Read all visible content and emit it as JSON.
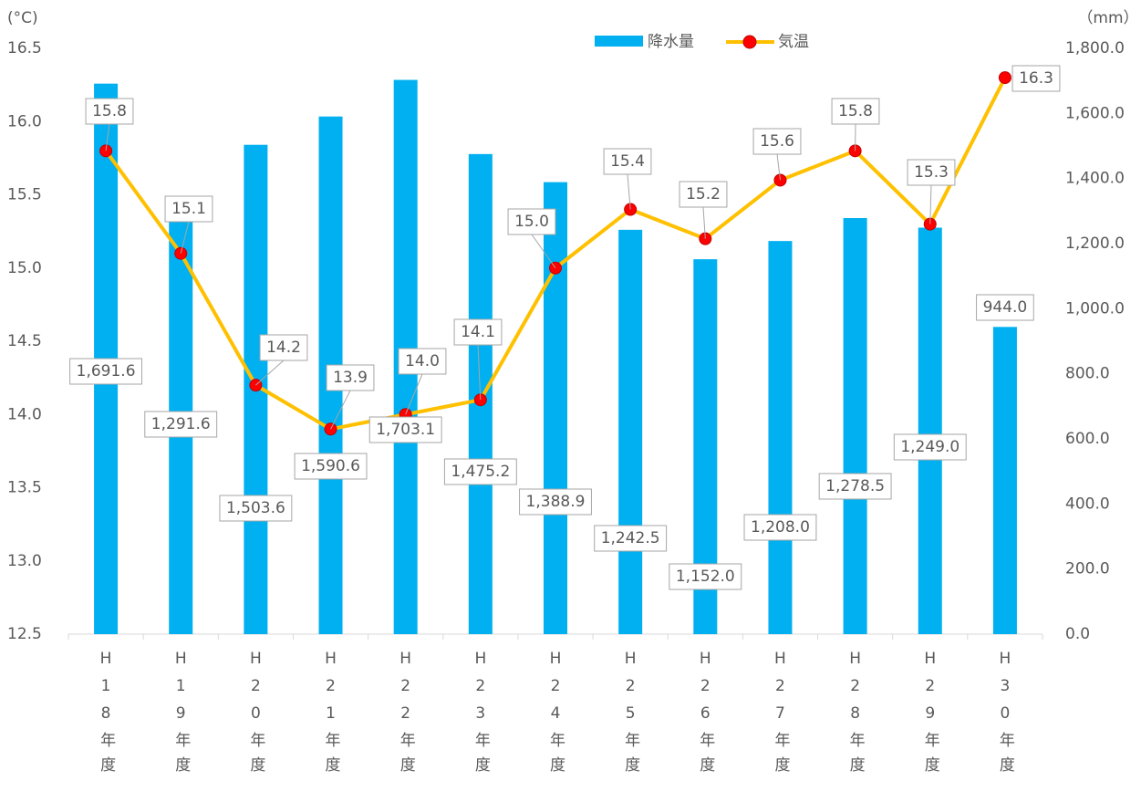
{
  "chart_data": {
    "type": "combo",
    "y_label": "(°C)",
    "y2_label": "（mm）",
    "categories": [
      "H18年度",
      "H19年度",
      "H20年度",
      "H21年度",
      "H22年度",
      "H23年度",
      "H24年度",
      "H25年度",
      "H26年度",
      "H27年度",
      "H28年度",
      "H29年度",
      "H30年度"
    ],
    "series": [
      {
        "name": "降水量",
        "type": "bar",
        "axis": "y2",
        "color": "#00b0f0",
        "values": [
          1691.6,
          1291.6,
          1503.6,
          1590.6,
          1703.1,
          1475.2,
          1388.9,
          1242.5,
          1152.0,
          1208.0,
          1278.5,
          1249.0,
          944.0
        ],
        "value_labels": [
          "1,691.6",
          "1,291.6",
          "1,503.6",
          "1,590.6",
          "1,703.1",
          "1,475.2",
          "1,388.9",
          "1,242.5",
          "1,152.0",
          "1,208.0",
          "1,278.5",
          "1,249.0",
          "944.0"
        ]
      },
      {
        "name": "気温",
        "type": "line",
        "axis": "y",
        "color": "#ffc000",
        "marker_color": "#ff0000",
        "values": [
          15.8,
          15.1,
          14.2,
          13.9,
          14.0,
          14.1,
          15.0,
          15.4,
          15.2,
          15.6,
          15.8,
          15.3,
          16.3
        ],
        "value_labels": [
          "15.8",
          "15.1",
          "14.2",
          "13.9",
          "14.0",
          "14.1",
          "15.0",
          "15.4",
          "15.2",
          "15.6",
          "15.8",
          "15.3",
          "16.3"
        ]
      }
    ],
    "ylim": [
      12.5,
      16.5
    ],
    "yticks": [
      12.5,
      {
        "value": 13,
        "label": "13.0"
      },
      13.5,
      {
        "value": 14,
        "label": "14.0"
      },
      14.5,
      {
        "value": 15,
        "label": "15.0"
      },
      15.5,
      {
        "value": 16,
        "label": "16.0"
      },
      16.5
    ],
    "y2lim": [
      0,
      1800
    ],
    "y2ticks": [
      {
        "value": 0,
        "label": "0.0"
      },
      {
        "value": 200,
        "label": "200.0"
      },
      {
        "value": 400,
        "label": "400.0"
      },
      {
        "value": 600,
        "label": "600.0"
      },
      {
        "value": 800,
        "label": "800.0"
      },
      {
        "value": 1000,
        "label": "1,000.0"
      },
      {
        "value": 1200,
        "label": "1,200.0"
      },
      {
        "value": 1400,
        "label": "1,400.0"
      },
      {
        "value": 1600,
        "label": "1,600.0"
      },
      {
        "value": 1800,
        "label": "1,800.0"
      }
    ],
    "legend": "top"
  }
}
